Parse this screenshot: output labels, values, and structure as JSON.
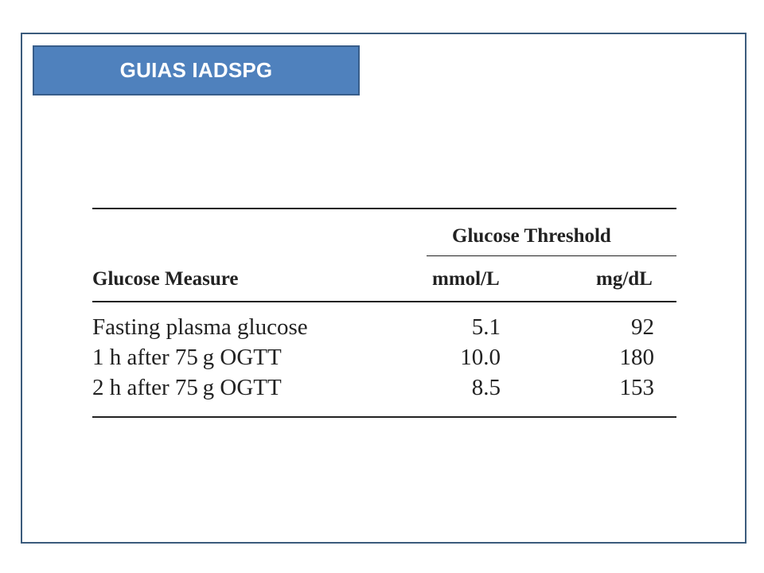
{
  "slide": {
    "title": "GUIAS IADSPG"
  },
  "table": {
    "group_header": "Glucose Threshold",
    "columns": {
      "measure": "Glucose Measure",
      "mmol": "mmol/L",
      "mgdl": "mg/dL"
    },
    "rows": [
      {
        "measure": "Fasting plasma glucose",
        "mmol": "5.1",
        "mgdl": "92"
      },
      {
        "measure": "1 h after 75 g OGTT",
        "mmol": "10.0",
        "mgdl": "180"
      },
      {
        "measure": "2 h after 75 g OGTT",
        "mmol": "8.5",
        "mgdl": "153"
      }
    ]
  },
  "colors": {
    "title_fill": "#4f81bd",
    "title_border": "#385d8a",
    "frame_border": "#3b5b7c",
    "text": "#222222"
  }
}
